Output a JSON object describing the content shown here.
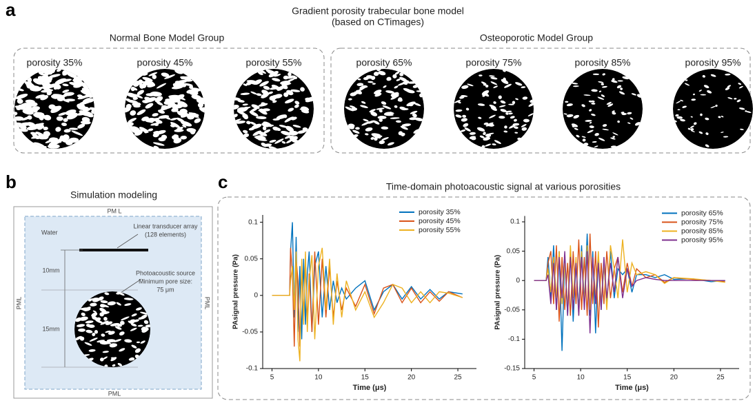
{
  "panel_a": {
    "label": "a",
    "title": "Gradient porosity trabecular bone model",
    "subtitle": "(based on CTimages)",
    "groups": [
      {
        "title": "Normal Bone Model Group",
        "models": [
          "porosity 35%",
          "porosity 45%",
          "porosity 55%"
        ]
      },
      {
        "title": "Osteoporotic Model Group",
        "models": [
          "porosity 65%",
          "porosity 75%",
          "porosity 85%",
          "porosity 95%"
        ]
      }
    ]
  },
  "panel_b": {
    "label": "b",
    "title": "Simulation modeling",
    "pml_top": "PM L",
    "pml_left": "PML",
    "pml_right": "PML",
    "pml_bottom": "PML",
    "water": "Water",
    "transducer": [
      "Linear transducer array",
      "(128 elements)"
    ],
    "distance_1": "10mm",
    "distance_2": "15mm",
    "source": [
      "Photoacoustic source",
      "Minimum pore size:",
      "75 μm"
    ]
  },
  "panel_c": {
    "label": "c",
    "title": "Time-domain photoacoustic signal at various porosities"
  },
  "chart_data": [
    {
      "type": "line",
      "x_label": "Time (μs)",
      "y_label": "PAsignal pressure (Pa)",
      "x": [
        5,
        6.9,
        7.0,
        7.2,
        7.4,
        7.6,
        7.8,
        8.0,
        8.2,
        8.4,
        8.6,
        8.8,
        9.0,
        9.3,
        9.6,
        10.0,
        10.4,
        10.8,
        11.2,
        11.6,
        12.0,
        12.5,
        13,
        14,
        15,
        16,
        17,
        18,
        19,
        20,
        21,
        22,
        23,
        24,
        25.5
      ],
      "series": [
        {
          "name": "porosity 35%",
          "color": "#0072bd",
          "values": [
            0,
            0,
            0.06,
            0.1,
            -0.03,
            0.08,
            -0.05,
            0.04,
            -0.06,
            0.05,
            -0.04,
            0.03,
            0.06,
            -0.05,
            0.04,
            0.06,
            -0.03,
            0.04,
            -0.02,
            0.02,
            -0.01,
            0.01,
            -0.005,
            0.01,
            0.02,
            -0.02,
            0.005,
            0.015,
            -0.005,
            0.012,
            -0.005,
            0.008,
            -0.005,
            0.005,
            0.002
          ]
        },
        {
          "name": "porosity 45%",
          "color": "#d95319",
          "values": [
            0,
            0,
            0.065,
            0.03,
            -0.07,
            0.05,
            0.02,
            -0.07,
            0.04,
            -0.03,
            0.05,
            -0.04,
            0.03,
            -0.05,
            0.06,
            -0.04,
            0.05,
            -0.03,
            0.04,
            -0.03,
            0.02,
            -0.02,
            0.01,
            -0.015,
            0.015,
            -0.025,
            0.01,
            0.015,
            -0.01,
            0.01,
            -0.01,
            0.005,
            -0.008,
            0.005,
            -0.003
          ]
        },
        {
          "name": "porosity 55%",
          "color": "#edb120",
          "values": [
            0,
            0,
            0.02,
            0.04,
            -0.02,
            0.06,
            -0.06,
            -0.09,
            0.05,
            -0.04,
            0.06,
            -0.05,
            0.02,
            0.055,
            -0.06,
            0.04,
            0.065,
            -0.02,
            0.05,
            -0.04,
            0.03,
            -0.03,
            0.02,
            -0.02,
            0.005,
            -0.03,
            -0.01,
            0.015,
            0.01,
            -0.01,
            0.005,
            -0.01,
            0.005,
            0.003,
            -0.003
          ]
        }
      ],
      "xlim": [
        4,
        27
      ],
      "xticks": [
        5,
        10,
        15,
        20,
        25
      ],
      "ylim": [
        -0.1,
        0.11
      ],
      "yticks": [
        -0.1,
        -0.05,
        0,
        0.05,
        0.1
      ],
      "grid": false,
      "legend": "upper right"
    },
    {
      "type": "line",
      "x_label": "Time (μs)",
      "y_label": "PAsignal pressure (Pa)",
      "x": [
        5,
        6.3,
        6.5,
        6.8,
        7.1,
        7.4,
        7.7,
        8.0,
        8.3,
        8.6,
        8.9,
        9.2,
        9.5,
        9.8,
        10.1,
        10.4,
        10.7,
        11.0,
        11.3,
        11.6,
        11.9,
        12.2,
        12.5,
        12.8,
        13.2,
        13.6,
        14,
        14.5,
        15,
        15.5,
        16,
        17,
        18,
        19,
        20,
        22,
        24,
        25.5
      ],
      "series": [
        {
          "name": "porosity 65%",
          "color": "#0072bd",
          "values": [
            0,
            0,
            0.04,
            -0.03,
            0.06,
            -0.05,
            0.05,
            -0.12,
            0.04,
            -0.06,
            0.05,
            -0.07,
            0.03,
            -0.05,
            0.06,
            -0.04,
            0.08,
            -0.06,
            0.05,
            -0.09,
            0.04,
            -0.05,
            0.03,
            -0.04,
            0.05,
            -0.03,
            0.02,
            0.01,
            0.02,
            -0.02,
            0.01,
            0.01,
            0.005,
            0.01,
            0.002,
            0.003,
            -0.002,
            0
          ]
        },
        {
          "name": "porosity 75%",
          "color": "#d95319",
          "values": [
            0,
            0,
            0.03,
            0.05,
            -0.04,
            0.06,
            -0.07,
            0.04,
            -0.05,
            0.03,
            -0.06,
            0.05,
            -0.04,
            0.07,
            -0.05,
            0.04,
            -0.06,
            0.08,
            -0.04,
            0.05,
            -0.08,
            0.03,
            -0.04,
            0.05,
            -0.03,
            0.02,
            0.04,
            -0.02,
            0.03,
            -0.01,
            0.02,
            0.005,
            0.01,
            -0.003,
            0.005,
            0.002,
            0,
            -0.002
          ]
        },
        {
          "name": "porosity 85%",
          "color": "#edb120",
          "values": [
            0,
            0,
            0.02,
            -0.02,
            0.04,
            -0.03,
            0.05,
            -0.04,
            0.03,
            -0.05,
            0.06,
            -0.03,
            0.04,
            -0.06,
            0.05,
            -0.04,
            0.06,
            -0.05,
            0.04,
            -0.03,
            0.05,
            -0.04,
            0.03,
            -0.05,
            0.06,
            0.02,
            -0.03,
            0.07,
            -0.02,
            0.03,
            0.01,
            0.015,
            0.01,
            -0.005,
            0.005,
            0.003,
            0,
            -0.003
          ]
        },
        {
          "name": "porosity 95%",
          "color": "#7e2f8e",
          "values": [
            0,
            0,
            0.01,
            -0.04,
            0.03,
            -0.05,
            0.04,
            -0.03,
            0.05,
            -0.06,
            0.04,
            -0.05,
            0.03,
            -0.06,
            0.04,
            -0.05,
            0.05,
            -0.09,
            0.04,
            -0.04,
            0.03,
            -0.05,
            0.04,
            -0.03,
            0.03,
            -0.02,
            0.04,
            -0.03,
            0.02,
            -0.01,
            0,
            0.005,
            0.002,
            0,
            0,
            0,
            0,
            0
          ]
        }
      ],
      "xlim": [
        4,
        27
      ],
      "xticks": [
        5,
        10,
        15,
        20,
        25
      ],
      "ylim": [
        -0.15,
        0.11
      ],
      "yticks": [
        -0.15,
        -0.1,
        -0.05,
        0,
        0.05,
        0.1
      ],
      "grid": false,
      "legend": "upper right"
    }
  ]
}
